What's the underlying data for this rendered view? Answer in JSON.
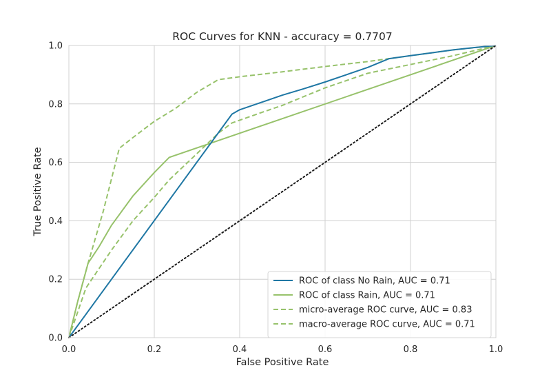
{
  "chart_data": {
    "type": "line",
    "title": "ROC Curves for KNN - accuracy = 0.7707",
    "xlabel": "False Positive Rate",
    "ylabel": "True Positive Rate",
    "xlim": [
      0,
      1
    ],
    "ylim": [
      0,
      1
    ],
    "xticks": [
      "0.0",
      "0.2",
      "0.4",
      "0.6",
      "0.8",
      "1.0"
    ],
    "yticks": [
      "0.0",
      "0.2",
      "0.4",
      "0.6",
      "0.8",
      "1.0"
    ],
    "grid": true,
    "legend_position": "lower-right",
    "series": [
      {
        "name": "ROC of class No Rain, AUC = 0.71",
        "color": "#1f77a4",
        "style": "solid",
        "x": [
          0,
          0.382,
          0.4,
          0.45,
          0.5,
          0.55,
          0.6,
          0.65,
          0.7,
          0.75,
          0.8,
          0.85,
          0.9,
          0.95,
          1.0
        ],
        "y": [
          0,
          0.765,
          0.78,
          0.805,
          0.83,
          0.852,
          0.875,
          0.9,
          0.925,
          0.955,
          0.965,
          0.975,
          0.985,
          0.993,
          1.0
        ]
      },
      {
        "name": "ROC of class Rain, AUC = 0.71",
        "color": "#97c26b",
        "style": "solid",
        "x": [
          0,
          0.02,
          0.045,
          0.07,
          0.1,
          0.15,
          0.2,
          0.235,
          1.0
        ],
        "y": [
          0,
          0.12,
          0.255,
          0.31,
          0.385,
          0.485,
          0.565,
          0.617,
          1.0
        ]
      },
      {
        "name": "micro-average ROC curve, AUC = 0.83",
        "color": "#97c26b",
        "style": "dashed",
        "x": [
          0,
          0.02,
          0.045,
          0.08,
          0.118,
          0.15,
          0.2,
          0.25,
          0.3,
          0.35,
          0.4,
          0.5,
          0.6,
          0.7,
          0.8,
          0.9,
          1.0
        ],
        "y": [
          0,
          0.12,
          0.255,
          0.43,
          0.648,
          0.685,
          0.74,
          0.785,
          0.84,
          0.883,
          0.893,
          0.91,
          0.928,
          0.945,
          0.965,
          0.985,
          1.0
        ]
      },
      {
        "name": "macro-average ROC curve, AUC = 0.71",
        "color": "#97c26b",
        "style": "dashed",
        "x": [
          0,
          0.04,
          0.1,
          0.15,
          0.2,
          0.235,
          0.3,
          0.35,
          0.382,
          0.45,
          0.5,
          0.6,
          0.7,
          0.8,
          0.9,
          1.0
        ],
        "y": [
          0,
          0.17,
          0.3,
          0.4,
          0.48,
          0.54,
          0.63,
          0.7,
          0.735,
          0.77,
          0.795,
          0.855,
          0.905,
          0.935,
          0.965,
          1.0
        ]
      },
      {
        "color": "#1a1a1a",
        "style": "dotted",
        "legend": false,
        "x": [
          0,
          1
        ],
        "y": [
          0,
          1
        ]
      }
    ]
  }
}
